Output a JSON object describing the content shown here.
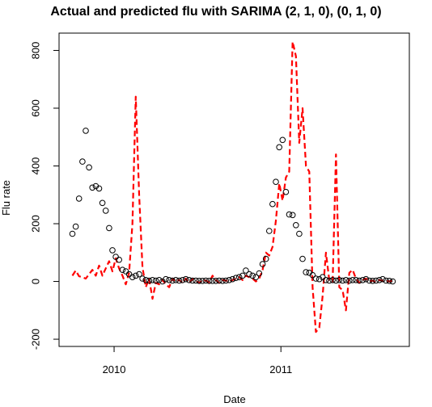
{
  "chart_data": {
    "type": "line",
    "title": "Actual and predicted flu with SARIMA (2, 1, 0), (0, 1, 0)",
    "xlabel": "Date",
    "ylabel": "Flu rate",
    "xlim": [
      2009.67,
      2011.77
    ],
    "ylim": [
      -225,
      860
    ],
    "x_ticks": [
      {
        "value": 2010,
        "label": "2010"
      },
      {
        "value": 2011,
        "label": "2011"
      }
    ],
    "y_ticks": [
      {
        "value": -200,
        "label": "-200"
      },
      {
        "value": 0,
        "label": "0"
      },
      {
        "value": 200,
        "label": "200"
      },
      {
        "value": 400,
        "label": "400"
      },
      {
        "value": 600,
        "label": "600"
      },
      {
        "value": 800,
        "label": "800"
      }
    ],
    "grid": false,
    "legend": "none",
    "colors": {
      "actual": "#000000",
      "predicted": "#ff0000"
    },
    "series": [
      {
        "style": "points",
        "x": [
          2009.75,
          2009.77,
          2009.79,
          2009.81,
          2009.83,
          2009.85,
          2009.87,
          2009.89,
          2009.91,
          2009.93,
          2009.95,
          2009.97,
          2009.99,
          2010.01,
          2010.03,
          2010.05,
          2010.07,
          2010.09,
          2010.11,
          2010.13,
          2010.15,
          2010.17,
          2010.19,
          2010.21,
          2010.23,
          2010.25,
          2010.27,
          2010.29,
          2010.31,
          2010.33,
          2010.35,
          2010.37,
          2010.39,
          2010.41,
          2010.43,
          2010.45,
          2010.47,
          2010.49,
          2010.51,
          2010.53,
          2010.55,
          2010.57,
          2010.59,
          2010.61,
          2010.63,
          2010.65,
          2010.67,
          2010.69,
          2010.71,
          2010.73,
          2010.75,
          2010.77,
          2010.79,
          2010.81,
          2010.83,
          2010.85,
          2010.87,
          2010.89,
          2010.91,
          2010.93,
          2010.95,
          2010.97,
          2010.99,
          2011.01,
          2011.03,
          2011.05,
          2011.07,
          2011.09,
          2011.11,
          2011.13,
          2011.15,
          2011.17,
          2011.19,
          2011.21,
          2011.23,
          2011.25,
          2011.27,
          2011.29,
          2011.31,
          2011.33,
          2011.35,
          2011.37,
          2011.39,
          2011.41,
          2011.43,
          2011.45,
          2011.47,
          2011.49,
          2011.51,
          2011.53,
          2011.55,
          2011.57,
          2011.59,
          2011.61,
          2011.63,
          2011.65,
          2011.67
        ],
        "y": [
          165,
          190,
          287,
          415,
          522,
          395,
          325,
          330,
          322,
          272,
          245,
          185,
          108,
          85,
          75,
          40,
          35,
          25,
          15,
          20,
          25,
          10,
          5,
          3,
          5,
          3,
          5,
          0,
          8,
          5,
          3,
          5,
          3,
          5,
          8,
          5,
          3,
          3,
          2,
          2,
          3,
          2,
          2,
          2,
          3,
          2,
          3,
          5,
          8,
          12,
          15,
          20,
          38,
          25,
          20,
          15,
          28,
          60,
          78,
          175,
          268,
          345,
          465,
          490,
          310,
          232,
          230,
          195,
          165,
          78,
          32,
          30,
          22,
          10,
          8,
          15,
          5,
          3,
          5,
          3,
          5,
          3,
          5,
          3,
          5,
          5,
          3,
          5,
          8,
          3,
          2,
          3,
          5,
          8,
          3,
          2,
          0
        ]
      },
      {
        "style": "dashed-line",
        "x": [
          2009.75,
          2009.77,
          2009.79,
          2009.81,
          2009.83,
          2009.85,
          2009.87,
          2009.89,
          2009.91,
          2009.93,
          2009.95,
          2009.97,
          2009.99,
          2010.01,
          2010.03,
          2010.05,
          2010.07,
          2010.09,
          2010.11,
          2010.13,
          2010.15,
          2010.17,
          2010.19,
          2010.21,
          2010.23,
          2010.25,
          2010.27,
          2010.29,
          2010.31,
          2010.33,
          2010.35,
          2010.37,
          2010.39,
          2010.41,
          2010.43,
          2010.45,
          2010.47,
          2010.49,
          2010.51,
          2010.53,
          2010.55,
          2010.57,
          2010.59,
          2010.61,
          2010.63,
          2010.65,
          2010.67,
          2010.69,
          2010.71,
          2010.73,
          2010.75,
          2010.77,
          2010.79,
          2010.81,
          2010.83,
          2010.85,
          2010.87,
          2010.89,
          2010.91,
          2010.93,
          2010.95,
          2010.97,
          2010.99,
          2011.01,
          2011.03,
          2011.05,
          2011.07,
          2011.09,
          2011.11,
          2011.13,
          2011.15,
          2011.17,
          2011.19,
          2011.21,
          2011.23,
          2011.25,
          2011.27,
          2011.29,
          2011.31,
          2011.33,
          2011.35,
          2011.37,
          2011.39,
          2011.41,
          2011.43,
          2011.45,
          2011.47,
          2011.49,
          2011.51,
          2011.53,
          2011.55,
          2011.57,
          2011.59,
          2011.61,
          2011.63,
          2011.65,
          2011.67
        ],
        "y": [
          20,
          38,
          18,
          15,
          10,
          25,
          40,
          20,
          55,
          20,
          45,
          70,
          35,
          80,
          45,
          20,
          -10,
          30,
          200,
          640,
          300,
          50,
          -20,
          10,
          -60,
          -5,
          -10,
          5,
          -10,
          -20,
          10,
          0,
          5,
          -5,
          10,
          -5,
          8,
          2,
          -5,
          5,
          3,
          -3,
          20,
          5,
          -5,
          5,
          3,
          0,
          5,
          10,
          15,
          5,
          20,
          15,
          10,
          0,
          10,
          40,
          100,
          90,
          120,
          210,
          340,
          280,
          360,
          380,
          830,
          780,
          480,
          600,
          400,
          380,
          -20,
          -175,
          -160,
          -50,
          100,
          5,
          0,
          440,
          -20,
          -30,
          -100,
          30,
          40,
          10,
          -5,
          5,
          10,
          0,
          3,
          -3,
          5,
          3,
          2,
          0,
          3
        ]
      }
    ]
  }
}
